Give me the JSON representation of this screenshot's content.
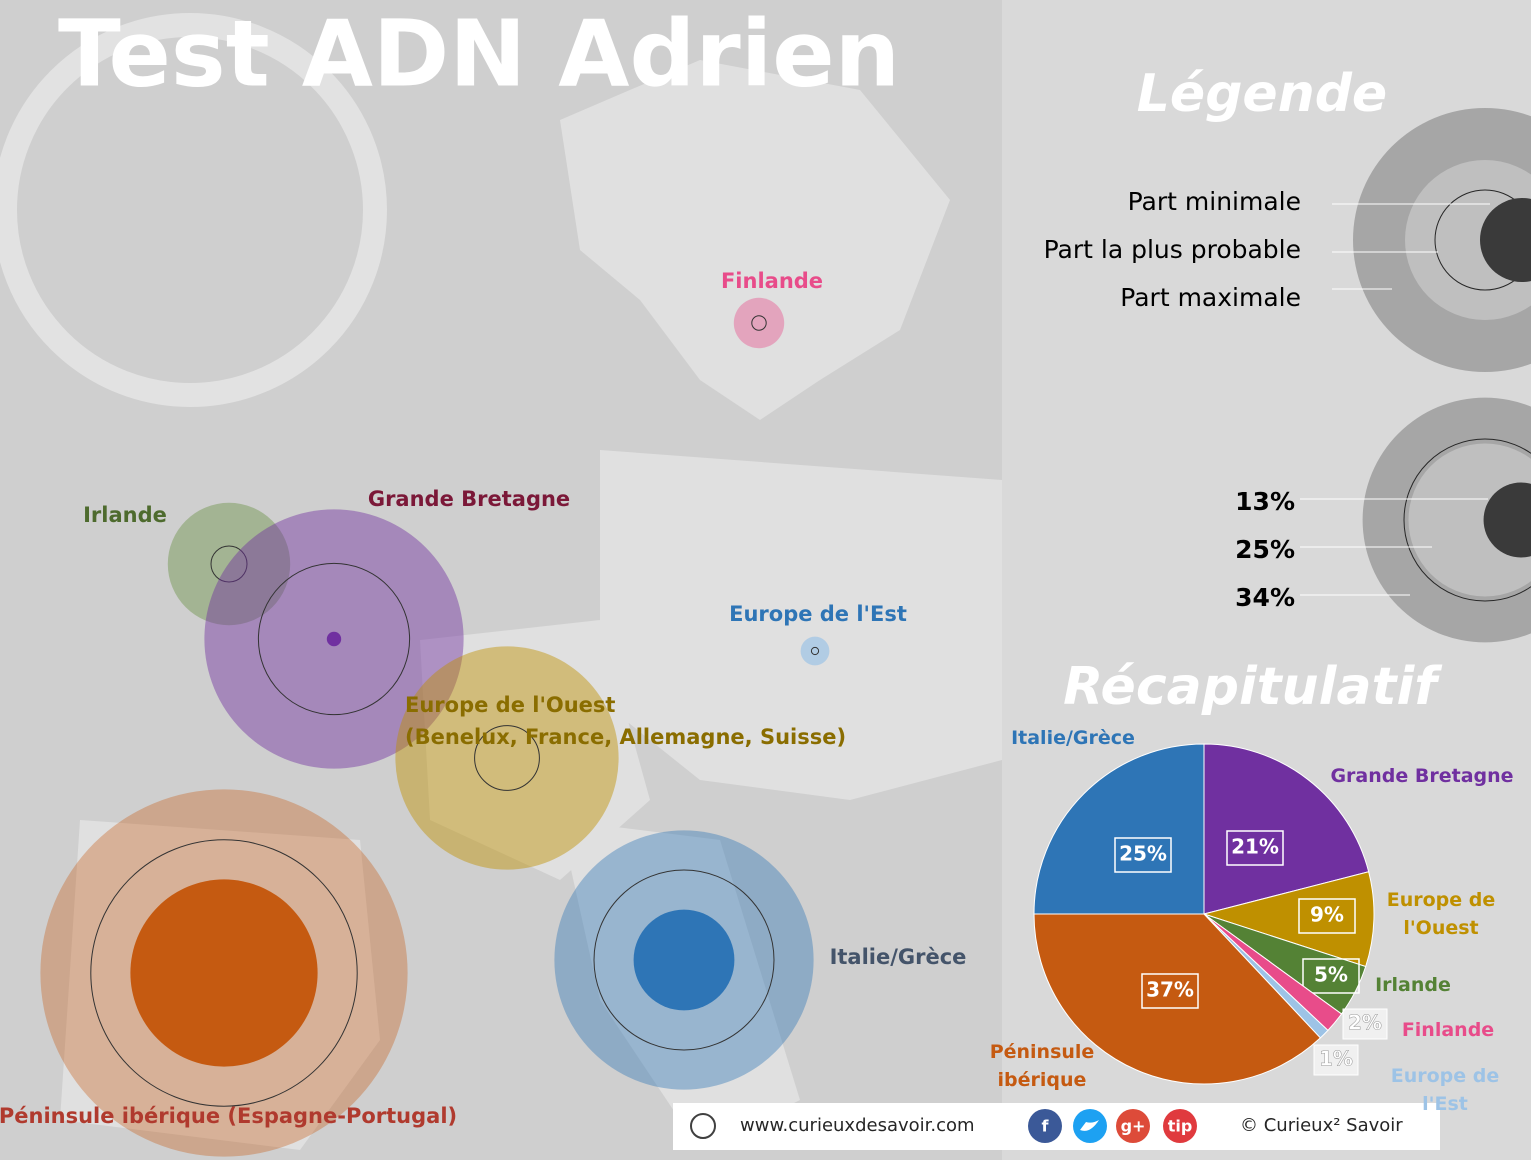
{
  "header": {
    "title": "Test ADN Adrien"
  },
  "map": {
    "regions": [
      {
        "label": "Irlande",
        "color": "#7f9f63",
        "label_color": "#4e6b2e",
        "min": 0,
        "probable": 5,
        "max": 17
      },
      {
        "label": "Grande Bretagne",
        "color": "#7030a0",
        "label_color": "#7b1838",
        "min": 2,
        "probable": 21,
        "max": 36
      },
      {
        "label": "Europe de l'Ouest",
        "detail": "(Benelux, France, Allemagne, Suisse)",
        "color": "#bf9000",
        "label_color": "#8a6d00",
        "min": 0,
        "probable": 9,
        "max": 31
      },
      {
        "label": "Italie/Grèce",
        "color": "#2e75b6",
        "label_color": "#44546a",
        "min": 14,
        "probable": 25,
        "max": 36
      },
      {
        "label": "Péninsule ibérique (Espagne-Portugal)",
        "color": "#c55a11",
        "label_color": "#b03a2e",
        "min": 26,
        "probable": 37,
        "max": 51
      },
      {
        "label": "Finlande",
        "color": "#e84c8a",
        "label_color": "#e84c8a",
        "min": 0,
        "probable": 2,
        "max": 7
      },
      {
        "label": "Europe de l'Est",
        "color": "#9dc3e6",
        "label_color": "#2e75b6",
        "min": 0,
        "probable": 1,
        "max": 4
      }
    ]
  },
  "legend": {
    "title": "Légende",
    "items": [
      "Part minimale",
      "Part la plus probable",
      "Part maximale"
    ],
    "example": {
      "values": [
        13,
        25,
        34
      ],
      "value_labels": [
        "13%",
        "25%",
        "34%"
      ]
    }
  },
  "chart_data": {
    "type": "pie",
    "title": "Récapitulatif",
    "categories": [
      "Grande Bretagne",
      "Europe de l'Ouest",
      "Irlande",
      "Finlande",
      "Europe de l'Est",
      "Péninsule ibérique",
      "Italie/Grèce"
    ],
    "values": [
      21,
      9,
      5,
      2,
      1,
      37,
      25
    ],
    "value_labels": [
      "21%",
      "9%",
      "5%",
      "2%",
      "1%",
      "37%",
      "25%"
    ],
    "colors": [
      "#7030a0",
      "#bf9000",
      "#548235",
      "#e84c8a",
      "#9dc3e6",
      "#c55a11",
      "#2e75b6"
    ]
  },
  "footer": {
    "url": "www.curieuxdesavoir.com",
    "icons": [
      "f",
      "g+",
      "tip"
    ],
    "copyright": "© Curieux² Savoir"
  }
}
